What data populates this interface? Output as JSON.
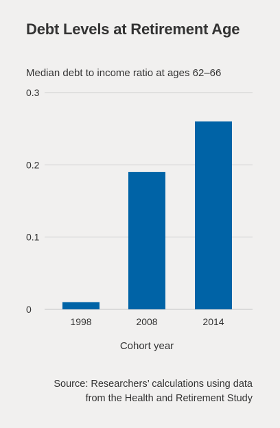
{
  "title": "Debt Levels at Retirement Age",
  "subtitle": "Median debt to income ratio at ages 62–66",
  "source_line1": "Source: Researchers’ calculations using data",
  "source_line2": "from the Health and Retirement Study",
  "colors": {
    "bar": "#0063a6",
    "grid": "#cfcfcf",
    "background": "#f1f0ef",
    "text": "#333333"
  },
  "chart_data": {
    "type": "bar",
    "categories": [
      "1998",
      "2008",
      "2014"
    ],
    "values": [
      0.01,
      0.19,
      0.26
    ],
    "title": "Debt Levels at Retirement Age",
    "subtitle": "Median debt to income ratio at ages 62–66",
    "xlabel": "Cohort year",
    "ylabel": "",
    "ylim": [
      0,
      0.3
    ],
    "yticks": [
      0,
      0.1,
      0.2,
      0.3
    ],
    "ytick_labels": [
      "0",
      "0.1",
      "0.2",
      "0.3"
    ],
    "grid": true,
    "legend": "none"
  }
}
